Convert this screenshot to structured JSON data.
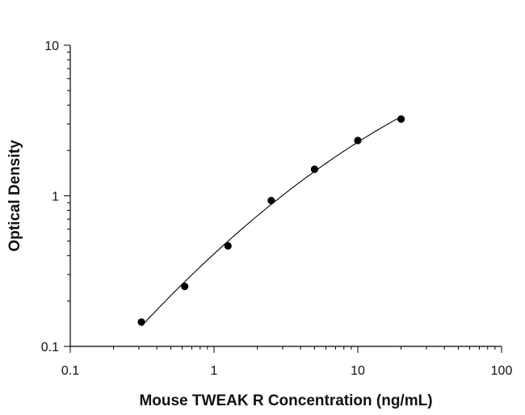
{
  "chart_data": {
    "type": "scatter",
    "title": "",
    "xlabel": "Mouse TWEAK R Concentration (ng/mL)",
    "ylabel": "Optical Density",
    "x_scale": "log",
    "y_scale": "log",
    "xlim": [
      0.1,
      100
    ],
    "ylim": [
      0.1,
      10
    ],
    "x_ticks": [
      "0.1",
      "1",
      "10",
      "100"
    ],
    "y_ticks": [
      "0.1",
      "1",
      "10"
    ],
    "grid": false,
    "legend": "none",
    "series": [
      {
        "x": [
          0.3125,
          0.625,
          1.25,
          2.5,
          5,
          10,
          20
        ],
        "y": [
          0.145,
          0.25,
          0.465,
          0.93,
          1.5,
          2.33,
          3.23
        ],
        "fit": "smooth curve"
      }
    ]
  }
}
